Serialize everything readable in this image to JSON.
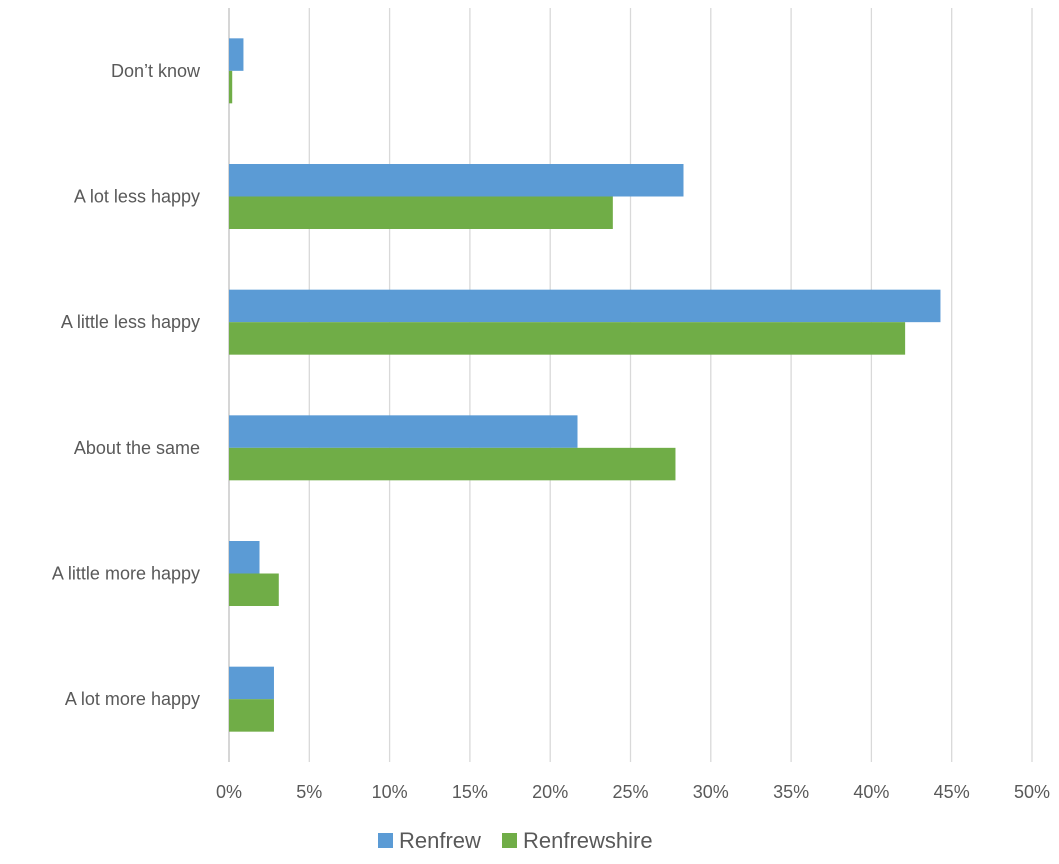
{
  "chart_data": {
    "type": "bar",
    "orientation": "horizontal",
    "categories": [
      "A lot more happy",
      "A little more happy",
      "About the same",
      "A little less happy",
      "A lot less happy",
      "Don’t know"
    ],
    "series": [
      {
        "name": "Renfrew",
        "color": "#5b9bd5",
        "values": [
          2.8,
          1.9,
          21.7,
          44.3,
          28.3,
          0.9
        ]
      },
      {
        "name": "Renfrewshire",
        "color": "#70ad47",
        "values": [
          2.8,
          3.1,
          27.8,
          42.1,
          23.9,
          0.2
        ]
      }
    ],
    "xlim": [
      0,
      50
    ],
    "x_ticks": [
      "0%",
      "5%",
      "10%",
      "15%",
      "20%",
      "25%",
      "30%",
      "35%",
      "40%",
      "45%",
      "50%"
    ],
    "grid": true,
    "legend_position": "bottom"
  }
}
